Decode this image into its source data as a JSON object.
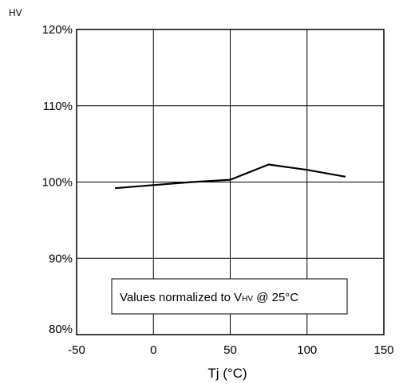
{
  "chart_data": {
    "type": "line",
    "ylabel": "HV",
    "xlabel": "Tj  (°C)",
    "xlim": [
      -50,
      150
    ],
    "ylim": [
      80,
      120
    ],
    "x_ticks": [
      -50,
      0,
      50,
      100,
      150
    ],
    "x_tick_labels": [
      "-50",
      "0",
      "50",
      "100",
      "150"
    ],
    "y_ticks": [
      80,
      90,
      100,
      110,
      120
    ],
    "y_tick_labels": [
      "80%",
      "90%",
      "100%",
      "110%",
      "120%"
    ],
    "grid": true,
    "series": [
      {
        "x": [
          -25,
          0,
          25,
          50,
          75,
          100,
          125
        ],
        "y": [
          99.2,
          99.6,
          100.0,
          100.3,
          102.3,
          101.6,
          100.7
        ]
      }
    ],
    "annotation": {
      "prefix": "Values normalized to V",
      "subscript": "HV",
      "suffix": " @ 25°C"
    }
  }
}
